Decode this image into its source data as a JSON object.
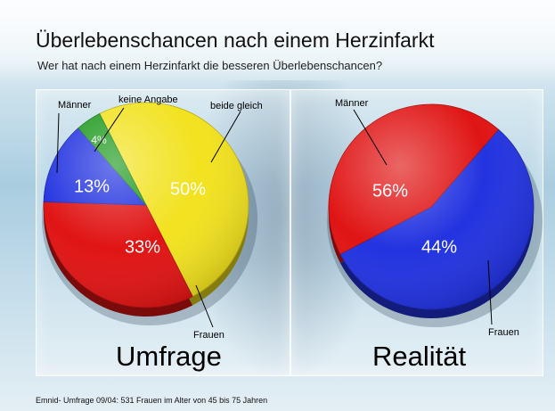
{
  "title": "Überlebenschancen nach einem Herzinfarkt",
  "subtitle": "Wer hat nach einem Herzinfarkt die besseren Überlebenschancen?",
  "footnote": "Emnid- Umfrage 09/04: 531 Frauen im Alter von 45 bis 75 Jahren",
  "chart_data": [
    {
      "type": "pie",
      "title": "Umfrage",
      "slices": [
        {
          "label": "beide gleich",
          "value": 50,
          "display": "50%",
          "color": "#f2e21f"
        },
        {
          "label": "Frauen",
          "value": 33,
          "display": "33%",
          "color": "#e01414"
        },
        {
          "label": "Männer",
          "value": 13,
          "display": "13%",
          "color": "#2233e0"
        },
        {
          "label": "keine Angabe",
          "value": 4,
          "display": "4%",
          "color": "#1f9a1f"
        }
      ]
    },
    {
      "type": "pie",
      "title": "Realität",
      "slices": [
        {
          "label": "Männer",
          "value": 56,
          "display": "56%",
          "color": "#2233e0"
        },
        {
          "label": "Frauen",
          "value": 44,
          "display": "44%",
          "color": "#e01414"
        }
      ]
    }
  ]
}
